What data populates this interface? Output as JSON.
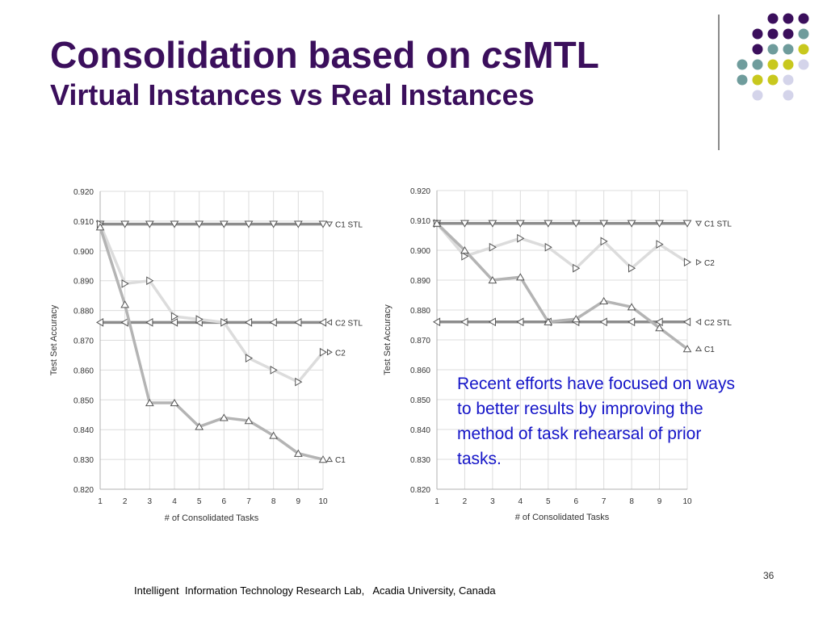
{
  "slide": {
    "title_main": "Consolidation based on ",
    "title_cs": "cs",
    "title_mtl": "MTL",
    "subtitle": "Virtual Instances vs Real Instances",
    "note": "Recent efforts have focused on ways to better results by improving the method of task rehearsal of prior tasks.",
    "footer": "Intelligent  Information Technology Research Lab,   Acadia University, Canada",
    "page_number": "36"
  },
  "decor": {
    "dot_colors": {
      "purple": "#3b0f5c",
      "teal": "#6f9c9c",
      "yellow": "#c8c81e",
      "lavender": "#d4d4ea"
    },
    "dot_rows": [
      [
        "",
        "",
        "purple",
        "purple",
        "purple"
      ],
      [
        "",
        "purple",
        "purple",
        "purple",
        "teal"
      ],
      [
        "",
        "purple",
        "teal",
        "teal",
        "yellow"
      ],
      [
        "teal",
        "teal",
        "yellow",
        "yellow",
        "lavender"
      ],
      [
        "teal",
        "yellow",
        "yellow",
        "lavender",
        ""
      ],
      [
        "",
        "lavender",
        "",
        "lavender",
        ""
      ]
    ]
  },
  "chart_data": [
    {
      "type": "line",
      "xlabel": "# of Consolidated Tasks",
      "ylabel": "Test Set Accuracy",
      "x": [
        1,
        2,
        3,
        4,
        5,
        6,
        7,
        8,
        9,
        10
      ],
      "ylim": [
        0.82,
        0.92
      ],
      "yticks": [
        "0.820",
        "0.830",
        "0.840",
        "0.850",
        "0.860",
        "0.870",
        "0.880",
        "0.890",
        "0.900",
        "0.910",
        "0.920"
      ],
      "grid": true,
      "series": [
        {
          "name": "C1 STL",
          "marker": "triangle-down",
          "color": "#8c8c8c",
          "values": [
            0.909,
            0.909,
            0.909,
            0.909,
            0.909,
            0.909,
            0.909,
            0.909,
            0.909,
            0.909
          ]
        },
        {
          "name": "C2 STL",
          "marker": "triangle-left",
          "color": "#8c8c8c",
          "values": [
            0.876,
            0.876,
            0.876,
            0.876,
            0.876,
            0.876,
            0.876,
            0.876,
            0.876,
            0.876
          ]
        },
        {
          "name": "C2",
          "marker": "triangle-right",
          "color": "#dcdcdc",
          "values": [
            0.909,
            0.889,
            0.89,
            0.878,
            0.877,
            0.876,
            0.864,
            0.86,
            0.856,
            0.866
          ]
        },
        {
          "name": "C1",
          "marker": "triangle-up",
          "color": "#b4b4b4",
          "values": [
            0.908,
            0.882,
            0.849,
            0.849,
            0.841,
            0.844,
            0.843,
            0.838,
            0.832,
            0.83
          ]
        }
      ]
    },
    {
      "type": "line",
      "xlabel": "# of Consolidated Tasks",
      "ylabel": "Test Set Accuracy",
      "x": [
        1,
        2,
        3,
        4,
        5,
        6,
        7,
        8,
        9,
        10
      ],
      "ylim": [
        0.82,
        0.92
      ],
      "yticks": [
        "0.820",
        "0.830",
        "0.840",
        "0.850",
        "0.860",
        "0.870",
        "0.880",
        "0.890",
        "0.900",
        "0.910",
        "0.920"
      ],
      "grid": true,
      "series": [
        {
          "name": "C1 STL",
          "marker": "triangle-down",
          "color": "#8c8c8c",
          "values": [
            0.909,
            0.909,
            0.909,
            0.909,
            0.909,
            0.909,
            0.909,
            0.909,
            0.909,
            0.909
          ]
        },
        {
          "name": "C2",
          "marker": "triangle-right",
          "color": "#dcdcdc",
          "values": [
            0.909,
            0.898,
            0.901,
            0.904,
            0.901,
            0.894,
            0.903,
            0.894,
            0.902,
            0.896
          ]
        },
        {
          "name": "C2 STL",
          "marker": "triangle-left",
          "color": "#8c8c8c",
          "values": [
            0.876,
            0.876,
            0.876,
            0.876,
            0.876,
            0.876,
            0.876,
            0.876,
            0.876,
            0.876
          ]
        },
        {
          "name": "C1",
          "marker": "triangle-up",
          "color": "#b4b4b4",
          "values": [
            0.909,
            0.9,
            0.89,
            0.891,
            0.876,
            0.877,
            0.883,
            0.881,
            0.874,
            0.867
          ]
        }
      ]
    }
  ]
}
